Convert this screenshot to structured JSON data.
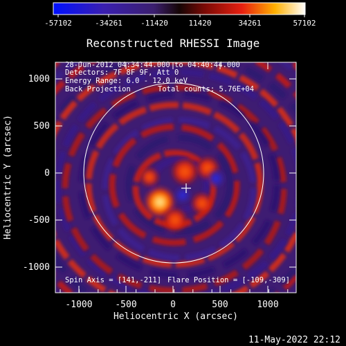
{
  "colorbar": {
    "tick_labels": [
      "-57102",
      "-34261",
      "-11420",
      "11420",
      "34261",
      "57102"
    ],
    "range": [
      -57102,
      57102
    ]
  },
  "title": "Reconstructed RHESSI Image",
  "info": {
    "time_range": "28-Jun-2012 04:34:44.000 to 04:40:44.000",
    "detectors": "Detectors: 7F 8F 9F, Att 0",
    "energy": "Energy Range: 6.0 - 12.0 keV",
    "method": "Back Projection",
    "counts": "Total counts: 5.76E+04"
  },
  "footer": {
    "spin_axis": "Spin Axis = [141,-211]",
    "flare_position": "Flare Position = [-109,-309]"
  },
  "axes": {
    "xlabel": "Heliocentric X (arcsec)",
    "ylabel": "Heliocentric Y (arcsec)",
    "xticks": [
      "-1000",
      "-500",
      "0",
      "500",
      "1000"
    ],
    "yticks": [
      "1000",
      "500",
      "0",
      "-500",
      "-1000"
    ]
  },
  "timestamp": "11-May-2022 22:12",
  "colors": {
    "background": "#000000",
    "limb": "#ffffff",
    "colormap": [
      "#0000ff",
      "#4b1a8c",
      "#000000",
      "#ff3000",
      "#ffd000",
      "#ffffff"
    ]
  }
}
